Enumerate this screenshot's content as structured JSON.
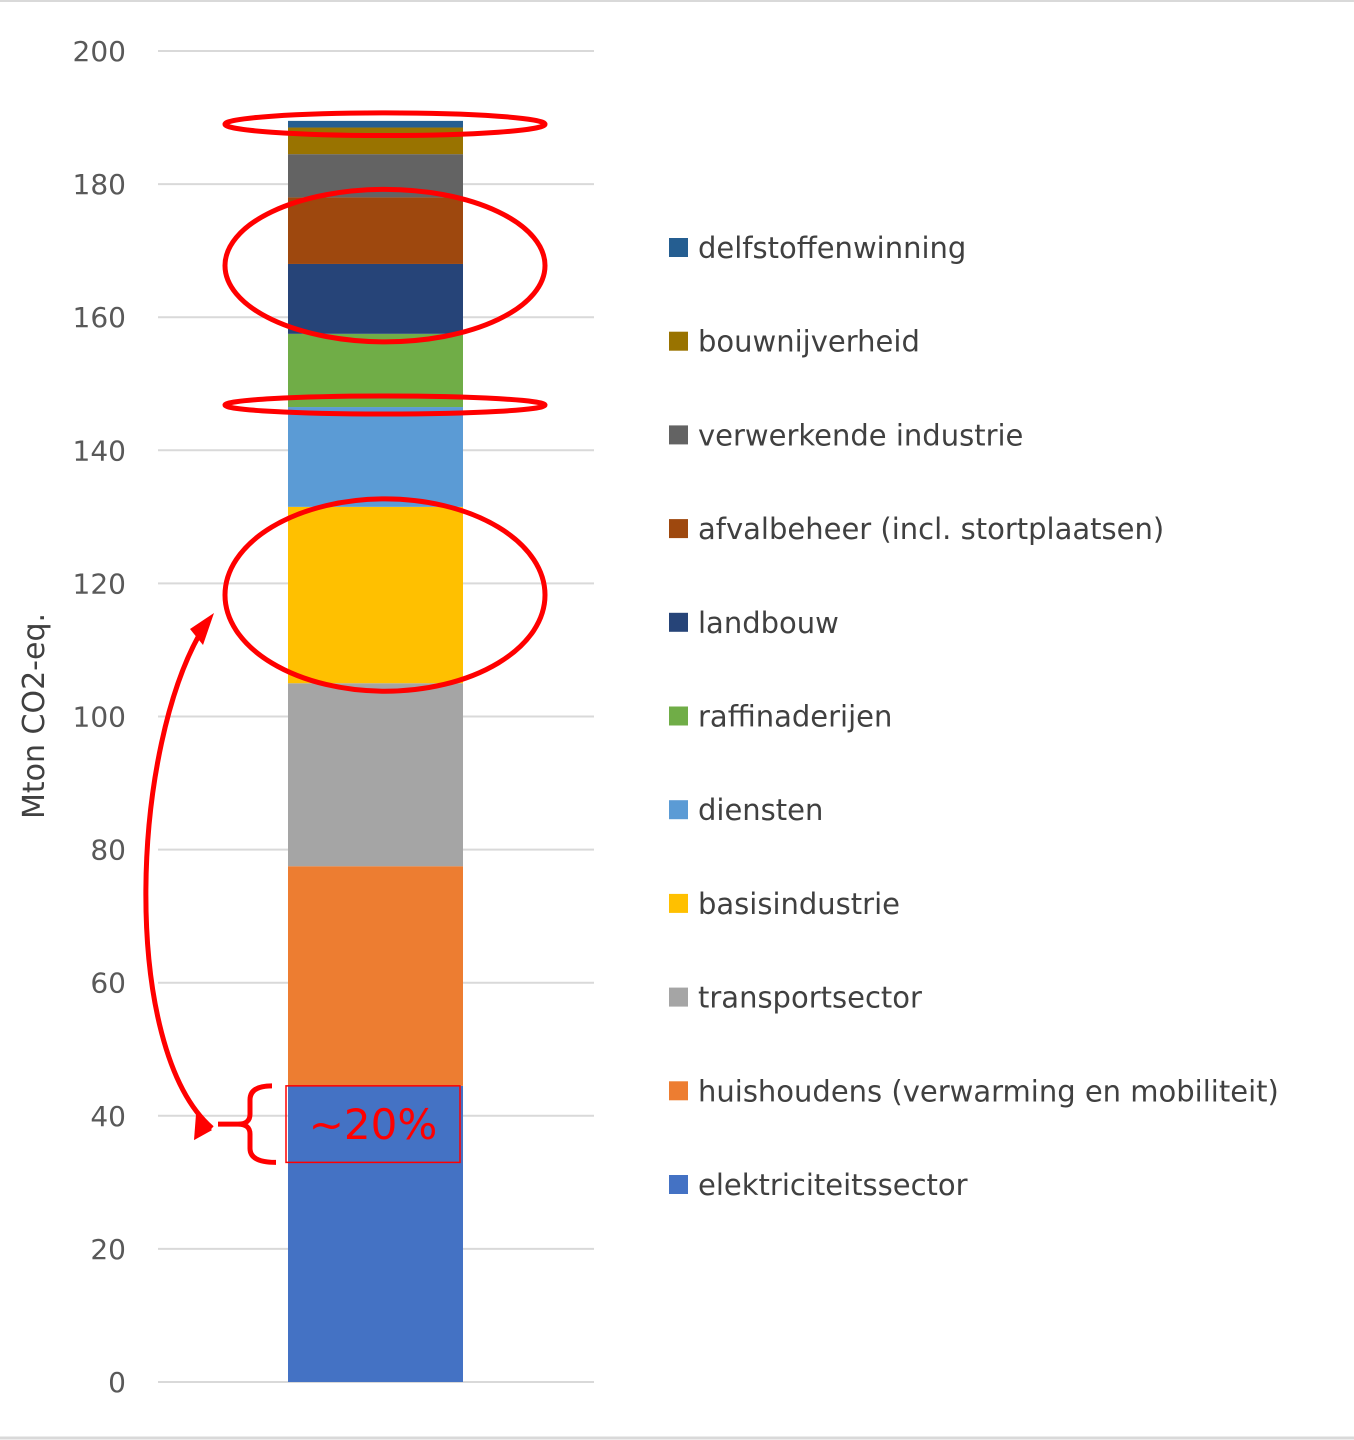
{
  "chart_data": {
    "type": "bar",
    "stacked": true,
    "ylabel": "Mton CO2-eq.",
    "ylim": [
      0,
      200
    ],
    "yticks": [
      0,
      20,
      40,
      60,
      80,
      100,
      120,
      140,
      160,
      180,
      200
    ],
    "grid": true,
    "legend_position": "right",
    "series": [
      {
        "name": "elektriciteitssector",
        "value": 44.5,
        "color": "#4472c4"
      },
      {
        "name": "huishoudens (verwarming en mobiliteit)",
        "value": 33.0,
        "color": "#ed7d31"
      },
      {
        "name": "transportsector",
        "value": 27.5,
        "color": "#a5a5a5"
      },
      {
        "name": "basisindustrie",
        "value": 26.5,
        "color": "#ffc000"
      },
      {
        "name": "diensten",
        "value": 15.0,
        "color": "#5b9bd5"
      },
      {
        "name": "raffinaderijen",
        "value": 11.0,
        "color": "#70ad47"
      },
      {
        "name": "landbouw",
        "value": 10.5,
        "color": "#264478"
      },
      {
        "name": "afvalbeheer (incl. stortplaatsen)",
        "value": 10.0,
        "color": "#9e480e"
      },
      {
        "name": "verwerkende industrie",
        "value": 6.5,
        "color": "#636363"
      },
      {
        "name": "bouwnijverheid",
        "value": 4.0,
        "color": "#997300"
      },
      {
        "name": "delfstoffenwinning",
        "value": 1.0,
        "color": "#255e91"
      }
    ],
    "legend_order": [
      "delfstoffenwinning",
      "bouwnijverheid",
      "verwerkende industrie",
      "afvalbeheer (incl. stortplaatsen)",
      "landbouw",
      "raffinaderijen",
      "diensten",
      "basisindustrie",
      "transportsector",
      "huishoudens (verwarming en mobiliteit)",
      "elektriciteitssector"
    ],
    "annotations": {
      "label": "~20%",
      "color": "#ff0000",
      "highlighted": [
        "delfstoffenwinning",
        "afvalbeheer (incl. stortplaatsen)",
        "landbouw",
        "raffinaderijen",
        "basisindustrie"
      ]
    }
  }
}
